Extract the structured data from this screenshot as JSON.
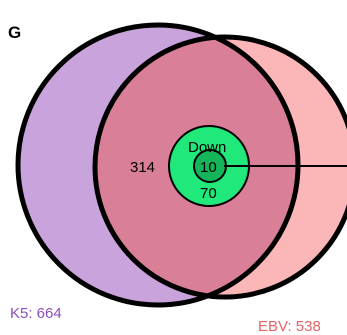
{
  "panel": {
    "letter": "G"
  },
  "sets": [
    {
      "name": "K5",
      "count": 664,
      "label": "K5: 664",
      "fill": "#c9a3dc",
      "text_color": "#8a4fbd"
    },
    {
      "name": "EBV",
      "count": 538,
      "label": "EBV: 538",
      "fill": "#fbb7b7",
      "text_color": "#e46464"
    }
  ],
  "regions": {
    "overlap_fill": "#d97f98",
    "overlap_value": "314",
    "subset_label": "Down",
    "subset_value": "70",
    "subset_fill": "#21e87a",
    "core_value": "10",
    "core_fill": "#14b45b"
  },
  "outline_color": "#000000"
}
